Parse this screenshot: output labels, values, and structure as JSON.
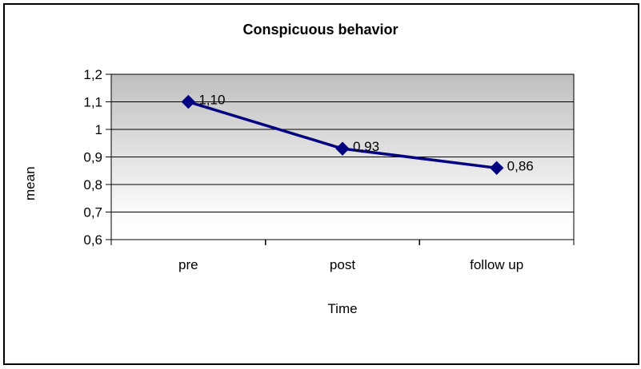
{
  "chart_data": {
    "type": "line",
    "title": "Conspicuous behavior",
    "xlabel": "Time",
    "ylabel": "mean",
    "categories": [
      "pre",
      "post",
      "follow up"
    ],
    "values": [
      1.1,
      0.93,
      0.86
    ],
    "point_labels": [
      "1,10",
      "0,93",
      "0,86"
    ],
    "ylim": [
      0.6,
      1.2
    ],
    "yticks": [
      {
        "value": 1.2,
        "label": "1,2"
      },
      {
        "value": 1.1,
        "label": "1,1"
      },
      {
        "value": 1.0,
        "label": "1"
      },
      {
        "value": 0.9,
        "label": "0,9"
      },
      {
        "value": 0.8,
        "label": "0,8"
      },
      {
        "value": 0.7,
        "label": "0,7"
      },
      {
        "value": 0.6,
        "label": "0,6"
      }
    ],
    "grid": "horizontal",
    "legend": "none",
    "marker": "diamond",
    "line_color": "#000080",
    "axis_color": "#000000",
    "text_color": "#000000",
    "plot_bg_gradient": [
      "#bfbfbf",
      "#fcfcfc",
      "#ffffff"
    ],
    "frame_border_color": "#000000",
    "background": "#ffffff"
  }
}
